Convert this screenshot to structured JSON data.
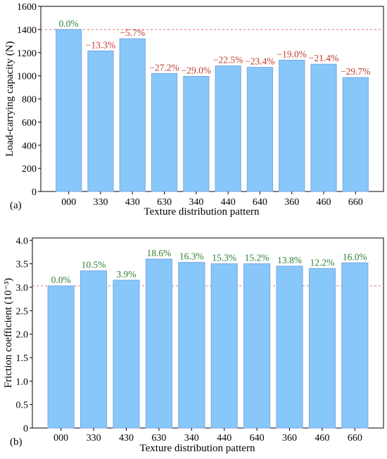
{
  "colors": {
    "bar_fill": "#87c7f9",
    "bar_stroke": "#7aa8e6",
    "reference_line": "#e07070",
    "negative_label": "#c0392b",
    "positive_label": "#2e7d32",
    "axis": "#000000"
  },
  "chart_data": [
    {
      "type": "bar",
      "panel_label": "(a)",
      "title": "",
      "xlabel": "Texture distribution pattern",
      "ylabel": "Load-carrying capacity (N)",
      "categories": [
        "000",
        "330",
        "430",
        "630",
        "340",
        "440",
        "640",
        "360",
        "460",
        "660"
      ],
      "values": [
        1400,
        1215,
        1320,
        1020,
        995,
        1085,
        1073,
        1135,
        1100,
        985
      ],
      "data_labels": [
        "0.0%",
        "−13.3%",
        "−5.7%",
        "−27.2%",
        "−29.0%",
        "−22.5%",
        "−23.4%",
        "−19.0%",
        "−21.4%",
        "−29.7%"
      ],
      "label_colors": [
        "positive",
        "negative",
        "negative",
        "negative",
        "negative",
        "negative",
        "negative",
        "negative",
        "negative",
        "negative"
      ],
      "ylim": [
        0,
        1600
      ],
      "yticks": [
        0,
        200,
        400,
        600,
        800,
        1000,
        1200,
        1400,
        1600
      ],
      "reference_line": 1400,
      "grid": false
    },
    {
      "type": "bar",
      "panel_label": "(b)",
      "title": "",
      "xlabel": "Texture distribution pattern",
      "ylabel": "Friction coefficient (10⁻³)",
      "categories": [
        "000",
        "330",
        "430",
        "630",
        "340",
        "440",
        "640",
        "360",
        "460",
        "660"
      ],
      "values": [
        3.03,
        3.35,
        3.15,
        3.6,
        3.53,
        3.5,
        3.5,
        3.45,
        3.4,
        3.52
      ],
      "data_labels": [
        "0.0%",
        "10.5%",
        "3.9%",
        "18.6%",
        "16.3%",
        "15.3%",
        "15.2%",
        "13.8%",
        "12.2%",
        "16.0%"
      ],
      "label_colors": [
        "positive",
        "positive",
        "positive",
        "positive",
        "positive",
        "positive",
        "positive",
        "positive",
        "positive",
        "positive"
      ],
      "ylim": [
        0,
        4.05
      ],
      "yticks": [
        "0",
        "0.5",
        "1.0",
        "1.5",
        "2.0",
        "2.5",
        "3.0",
        "3.5",
        "4.0"
      ],
      "reference_line": 3.03,
      "grid": false
    }
  ]
}
